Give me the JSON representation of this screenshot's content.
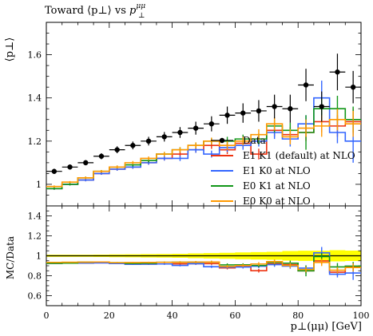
{
  "chart_data": {
    "type": "line",
    "title_main": "Toward ⟨p⊥⟩ vs ",
    "title_var": "p",
    "title_sup": "μμ",
    "title_sub": "⊥",
    "ylabel_top": "⟨p⊥⟩",
    "ylabel_bottom": "MC/Data",
    "xlabel": "p⊥(μμ) [GeV]",
    "xlim": [
      0,
      100
    ],
    "ylim_top": [
      0.9,
      1.75
    ],
    "ylim_bottom": [
      0.5,
      1.5
    ],
    "xticks": [
      0,
      20,
      40,
      60,
      80,
      100
    ],
    "yticks_top": [
      1.0,
      1.2,
      1.4,
      1.6
    ],
    "ytick_labels_top": [
      "1",
      "1.2",
      "1.4",
      "1.6"
    ],
    "yticks_bottom": [
      0.6,
      0.8,
      1.0,
      1.2,
      1.4
    ],
    "ytick_labels_bottom": [
      "0.6",
      "0.8",
      "1",
      "1.2",
      "1.4"
    ],
    "legend_position": "bottom-right",
    "band_color": "#ffff00",
    "bin_edges": [
      0,
      5,
      10,
      15,
      20,
      25,
      30,
      35,
      40,
      45,
      50,
      55,
      60,
      65,
      70,
      75,
      80,
      85,
      90,
      95,
      100
    ],
    "data": {
      "name": "Data",
      "color": "#000000",
      "values": [
        1.06,
        1.08,
        1.1,
        1.13,
        1.16,
        1.18,
        1.2,
        1.22,
        1.24,
        1.26,
        1.28,
        1.32,
        1.33,
        1.34,
        1.36,
        1.35,
        1.46,
        1.36,
        1.52,
        1.45
      ],
      "errors": [
        0.012,
        0.012,
        0.012,
        0.014,
        0.016,
        0.018,
        0.02,
        0.022,
        0.025,
        0.03,
        0.035,
        0.04,
        0.045,
        0.05,
        0.055,
        0.065,
        0.075,
        0.07,
        0.085,
        0.075
      ]
    },
    "series": [
      {
        "name": "E1 K1 (default) at NLO",
        "color": "#ee3311",
        "values": [
          0.98,
          1.0,
          1.02,
          1.05,
          1.07,
          1.08,
          1.1,
          1.12,
          1.14,
          1.16,
          1.18,
          1.16,
          1.19,
          1.14,
          1.25,
          1.23,
          1.24,
          1.29,
          1.27,
          1.29
        ],
        "errors": [
          0.005,
          0.005,
          0.006,
          0.006,
          0.007,
          0.008,
          0.009,
          0.01,
          0.012,
          0.014,
          0.016,
          0.02,
          0.02,
          0.025,
          0.03,
          0.035,
          0.04,
          0.05,
          0.05,
          0.06
        ]
      },
      {
        "name": "E1 K0 at NLO",
        "color": "#3366ff",
        "values": [
          0.98,
          1.0,
          1.02,
          1.05,
          1.07,
          1.08,
          1.1,
          1.12,
          1.12,
          1.16,
          1.14,
          1.17,
          1.18,
          1.2,
          1.24,
          1.21,
          1.28,
          1.4,
          1.24,
          1.2
        ],
        "errors": [
          0.005,
          0.005,
          0.006,
          0.006,
          0.007,
          0.008,
          0.009,
          0.01,
          0.012,
          0.014,
          0.016,
          0.02,
          0.02,
          0.025,
          0.03,
          0.035,
          0.04,
          0.08,
          0.05,
          0.1
        ]
      },
      {
        "name": "E0 K1 at NLO",
        "color": "#109618",
        "values": [
          0.98,
          1.0,
          1.03,
          1.06,
          1.08,
          1.09,
          1.11,
          1.14,
          1.16,
          1.18,
          1.2,
          1.2,
          1.21,
          1.21,
          1.27,
          1.25,
          1.24,
          1.35,
          1.35,
          1.3
        ],
        "errors": [
          0.005,
          0.005,
          0.006,
          0.006,
          0.007,
          0.008,
          0.009,
          0.01,
          0.012,
          0.014,
          0.016,
          0.02,
          0.02,
          0.025,
          0.03,
          0.035,
          0.08,
          0.05,
          0.06,
          0.06
        ]
      },
      {
        "name": "E0 K0 at NLO",
        "color": "#ff9900",
        "values": [
          0.99,
          1.01,
          1.03,
          1.06,
          1.08,
          1.1,
          1.12,
          1.14,
          1.16,
          1.18,
          1.2,
          1.18,
          1.2,
          1.23,
          1.28,
          1.22,
          1.26,
          1.27,
          1.3,
          1.28
        ],
        "errors": [
          0.005,
          0.005,
          0.006,
          0.006,
          0.007,
          0.008,
          0.009,
          0.01,
          0.012,
          0.014,
          0.016,
          0.02,
          0.02,
          0.025,
          0.03,
          0.035,
          0.04,
          0.05,
          0.05,
          0.06
        ]
      }
    ]
  }
}
